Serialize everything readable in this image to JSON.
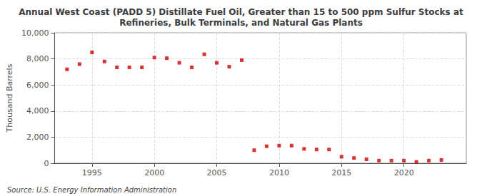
{
  "chart_data": {
    "type": "scatter",
    "title": "Annual West Coast (PADD 5) Distillate Fuel Oil, Greater than 15 to 500 ppm Sulfur Stocks at\nRefineries, Bulk Terminals, and Natural Gas Plants",
    "ylabel": "Thousand Barrels",
    "source": "Source: U.S. Energy Information Administration",
    "color": "#cc0000",
    "marker": "square",
    "grid": true,
    "x": [
      1993,
      1994,
      1995,
      1996,
      1997,
      1998,
      1999,
      2000,
      2001,
      2002,
      2003,
      2004,
      2005,
      2006,
      2007,
      2008,
      2009,
      2010,
      2011,
      2012,
      2013,
      2014,
      2015,
      2016,
      2017,
      2018,
      2019,
      2020,
      2021,
      2022,
      2023
    ],
    "values": [
      7200,
      7600,
      8500,
      7800,
      7350,
      7350,
      7350,
      8100,
      8050,
      7700,
      7350,
      8350,
      7700,
      7400,
      7900,
      1000,
      1300,
      1350,
      1350,
      1100,
      1050,
      1050,
      500,
      400,
      300,
      200,
      200,
      200,
      100,
      200,
      250
    ],
    "xlim": [
      1992.0,
      2025.0
    ],
    "xticks": [
      1995,
      2000,
      2005,
      2010,
      2015,
      2020
    ],
    "ylim": [
      0,
      10000
    ],
    "yticks": [
      0,
      {
        "value": 2000,
        "label": "2,000"
      },
      {
        "value": 4000,
        "label": "4,000"
      },
      {
        "value": 6000,
        "label": "6,000"
      },
      {
        "value": 8000,
        "label": "8,000"
      },
      {
        "value": 10000,
        "label": "10,000"
      }
    ]
  }
}
